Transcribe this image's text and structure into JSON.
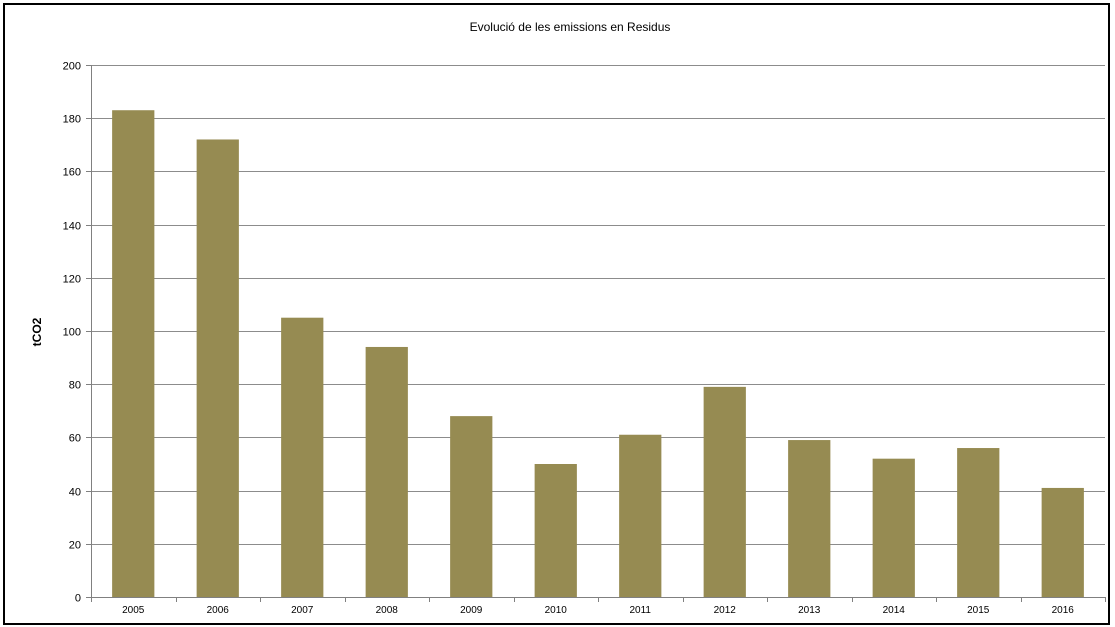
{
  "chart_data": {
    "type": "bar",
    "title": "Evolució de les emissions  en Residus",
    "xlabel": "",
    "ylabel": "tCO2",
    "ylim": [
      0,
      200
    ],
    "yticks": [
      0,
      20,
      40,
      60,
      80,
      100,
      120,
      140,
      160,
      180,
      200
    ],
    "grid": true,
    "legend": "none",
    "categories": [
      "2005",
      "2006",
      "2007",
      "2008",
      "2009",
      "2010",
      "2011",
      "2012",
      "2013",
      "2014",
      "2015",
      "2016"
    ],
    "values": [
      183,
      172,
      105,
      94,
      68,
      50,
      61,
      79,
      59,
      52,
      56,
      41
    ],
    "colors": {
      "bar": "#968B52",
      "grid": "#8C8C8C",
      "axis": "#808080",
      "border": "#000000"
    }
  }
}
